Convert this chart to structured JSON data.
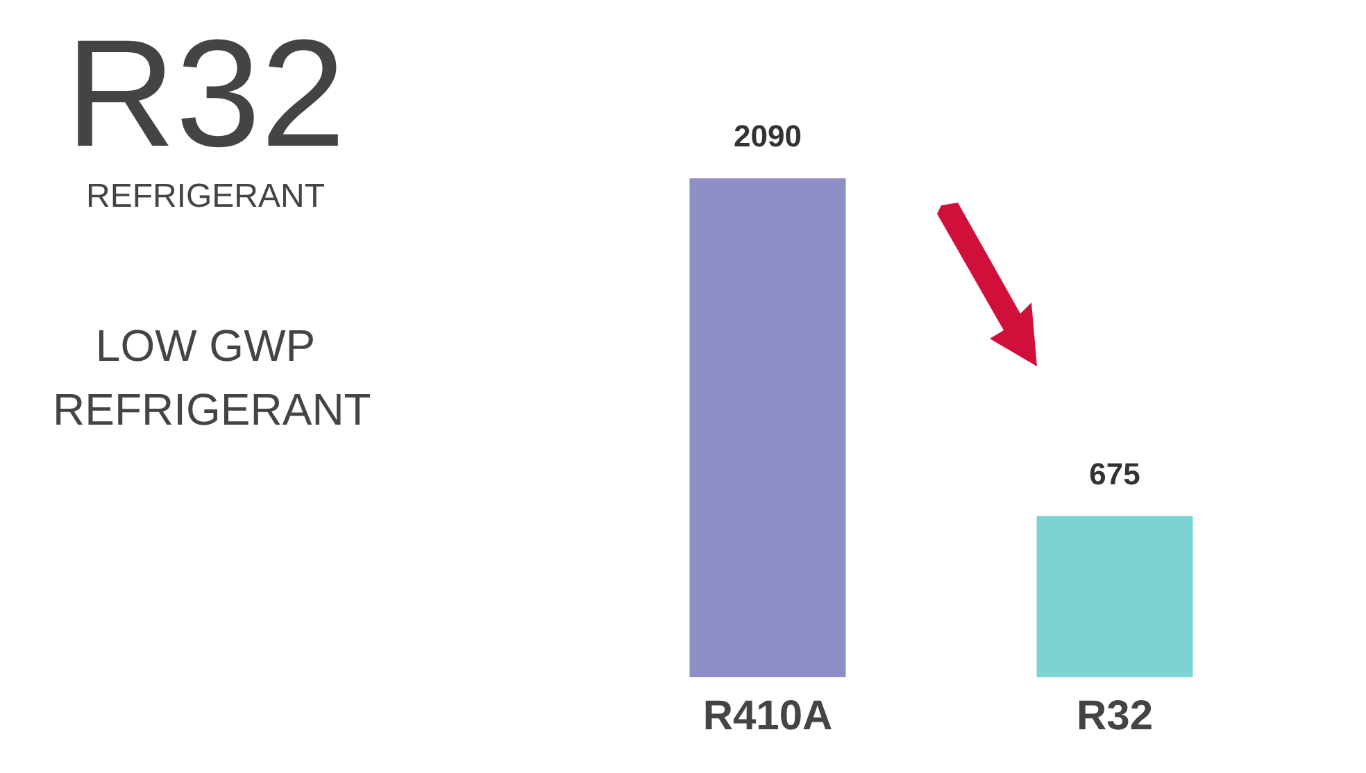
{
  "chart_data": {
    "type": "bar",
    "title": "R32",
    "subtitle": "REFRIGERANT",
    "annotations": [
      "LOW GWP REFRIGERANT"
    ],
    "categories": [
      "R410A",
      "R32"
    ],
    "values": [
      2090,
      675
    ],
    "colors": [
      "#8f8fc8",
      "#7dd3d3"
    ],
    "data_labels": true,
    "grid": false,
    "legend": false
  }
}
